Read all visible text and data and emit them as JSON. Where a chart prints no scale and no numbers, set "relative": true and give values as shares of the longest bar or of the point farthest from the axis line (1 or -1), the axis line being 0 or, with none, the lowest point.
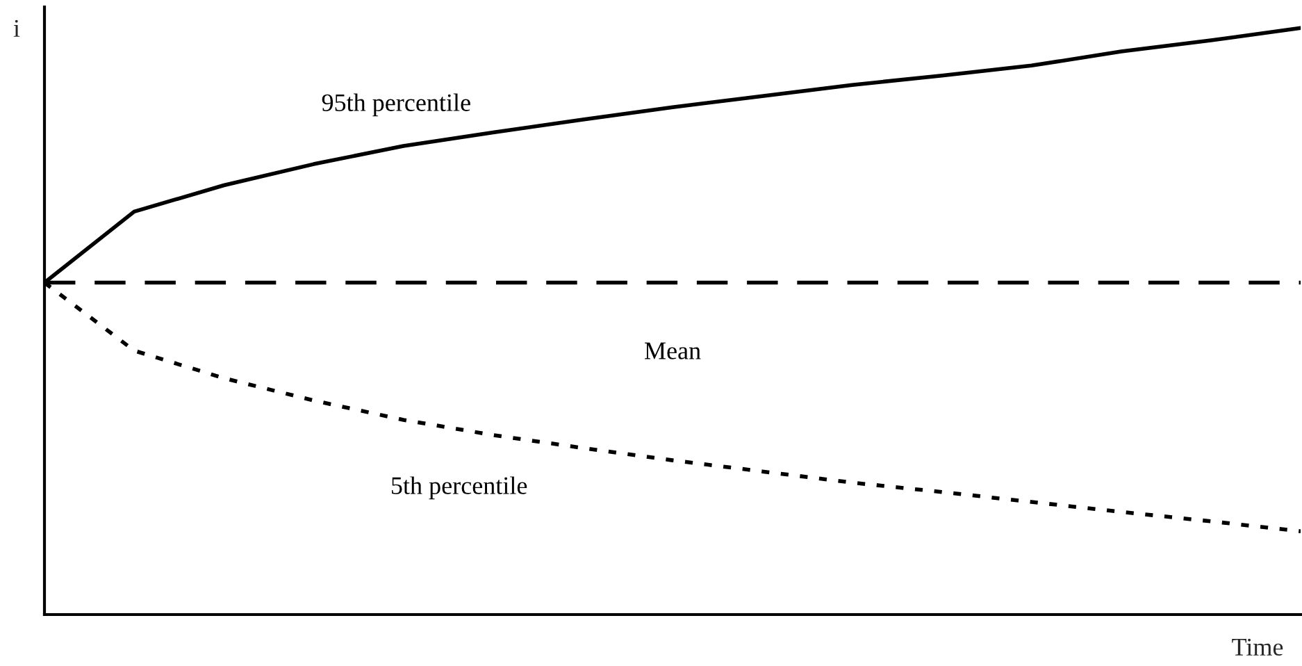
{
  "chart_data": {
    "type": "line",
    "relative": true,
    "xlabel": "Time",
    "ylabel": "i",
    "categories": [
      null,
      null,
      null,
      null,
      null,
      null,
      null,
      null,
      null,
      null,
      null,
      null,
      null,
      null,
      null
    ],
    "series": [
      {
        "name": "95th percentile",
        "color": "#000000",
        "line_style": "solid",
        "values": [
          0.566,
          0.687,
          0.732,
          0.768,
          0.799,
          0.822,
          0.844,
          0.865,
          0.884,
          0.903,
          0.919,
          0.936,
          0.96,
          0.979,
          1.0
        ]
      },
      {
        "name": "Mean",
        "color": "#000000",
        "line_style": "dashed",
        "values": [
          0.566,
          0.566,
          0.566,
          0.566,
          0.566,
          0.566,
          0.566,
          0.566,
          0.566,
          0.566,
          0.566,
          0.566,
          0.566,
          0.566,
          0.566
        ]
      },
      {
        "name": "5th percentile",
        "color": "#000000",
        "line_style": "dotted",
        "values": [
          0.566,
          0.45,
          0.403,
          0.365,
          0.332,
          0.306,
          0.284,
          0.263,
          0.244,
          0.225,
          0.209,
          0.192,
          0.175,
          0.159,
          0.142
        ]
      }
    ],
    "marker": "none"
  }
}
